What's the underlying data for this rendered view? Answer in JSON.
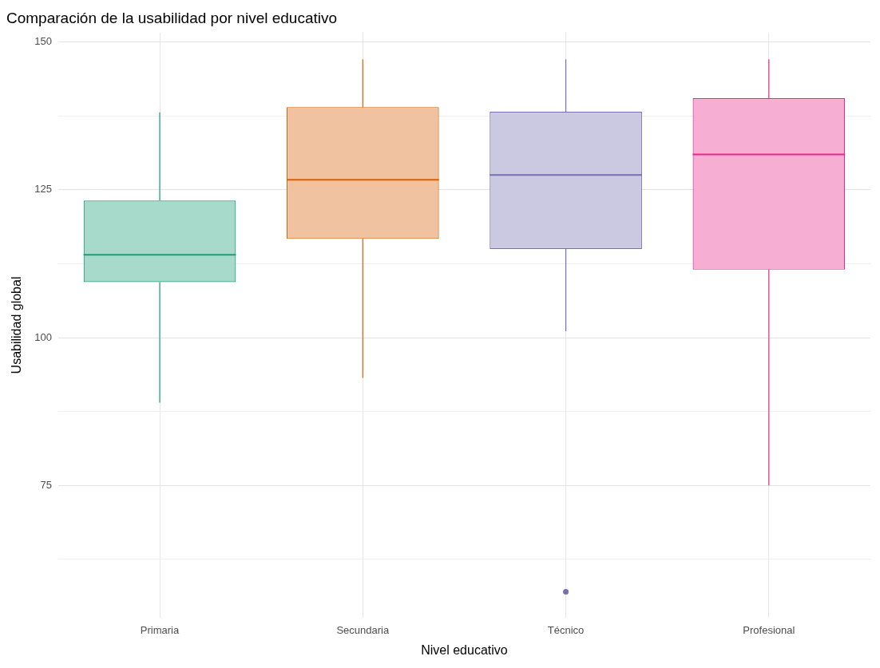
{
  "chart_data": {
    "type": "box",
    "title": "Comparación de la usabilidad por nivel educativo",
    "xlabel": "Nivel educativo",
    "ylabel": "Usabilidad global",
    "categories": [
      "Primaria",
      "Secundaria",
      "Técnico",
      "Profesional"
    ],
    "colors": [
      "#1b9e77",
      "#d95f02",
      "#7570b3",
      "#e7298a"
    ],
    "boxes": [
      {
        "low": 89,
        "q1": 109.4,
        "median": 114,
        "q3": 123.2,
        "high": 138.1
      },
      {
        "low": 93.2,
        "q1": 116.7,
        "median": 126.7,
        "q3": 139,
        "high": 147.1
      },
      {
        "low": 101.1,
        "q1": 115,
        "median": 127.5,
        "q3": 138.2,
        "high": 147.1,
        "outliers": [
          57
        ]
      },
      {
        "low": 75,
        "q1": 111.5,
        "median": 131,
        "q3": 140.5,
        "high": 147.1
      }
    ],
    "ylim": [
      52.6,
      151.6
    ],
    "yticks": [
      {
        "value": 62.5,
        "label": null
      },
      75,
      {
        "value": 87.5,
        "label": null
      },
      100,
      {
        "value": 112.5,
        "label": null
      },
      125,
      {
        "value": 137.5,
        "label": null
      },
      150
    ],
    "grid": true,
    "legend": false
  }
}
